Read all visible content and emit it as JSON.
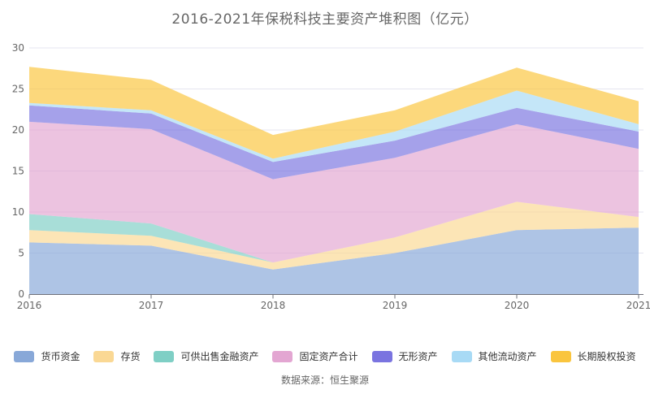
{
  "chart_data": {
    "type": "area",
    "stacked": true,
    "title": "2016-2021年保税科技主要资产堆积图（亿元）",
    "x": [
      "2016",
      "2017",
      "2018",
      "2019",
      "2020",
      "2021"
    ],
    "series": [
      {
        "name": "货币资金",
        "color": "#88A8D8",
        "values": [
          6.3,
          5.9,
          3.0,
          5.0,
          7.8,
          8.1
        ]
      },
      {
        "name": "存货",
        "color": "#FAD894",
        "values": [
          1.5,
          1.2,
          0.85,
          1.9,
          3.45,
          1.3
        ]
      },
      {
        "name": "可供出售金融资产",
        "color": "#7FCFC5",
        "values": [
          1.95,
          1.5,
          0.0,
          0.0,
          0.0,
          0.0
        ]
      },
      {
        "name": "固定资产合计",
        "color": "#E3A6D2",
        "values": [
          11.25,
          11.5,
          10.15,
          9.7,
          9.45,
          8.3
        ]
      },
      {
        "name": "无形资产",
        "color": "#7A74E0",
        "values": [
          2.0,
          1.9,
          2.1,
          2.1,
          2.0,
          2.1
        ]
      },
      {
        "name": "其他流动资产",
        "color": "#A8DAF5",
        "values": [
          0.3,
          0.4,
          0.4,
          1.1,
          2.1,
          0.9
        ]
      },
      {
        "name": "长期股权投资",
        "color": "#FAC53E",
        "values": [
          4.4,
          3.7,
          2.9,
          2.6,
          2.8,
          2.8
        ]
      }
    ],
    "ylim": [
      0,
      30
    ],
    "yticks": [
      0,
      5,
      10,
      15,
      20,
      25,
      30
    ],
    "grid": true,
    "legend_position": "bottom"
  },
  "footer": {
    "source": "数据来源：恒生聚源"
  },
  "style": {
    "axis_color": "#6E7079",
    "grid_color": "#E4E4F0",
    "text_color": "#666666",
    "legend_text_color": "#333333",
    "background": "#FFFFFF",
    "area_opacity": 0.68
  }
}
